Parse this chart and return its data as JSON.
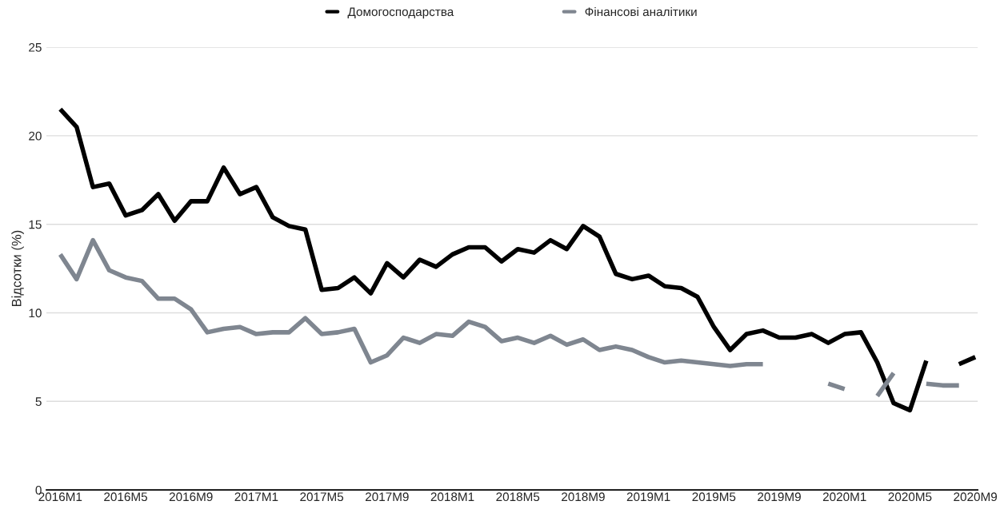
{
  "chart_data": {
    "type": "line",
    "ylabel": "Відсотки (%)",
    "categories": [
      "2016M1",
      null,
      null,
      null,
      "2016M5",
      null,
      null,
      null,
      "2016M9",
      null,
      null,
      null,
      "2017M1",
      null,
      null,
      null,
      "2017M5",
      null,
      null,
      null,
      "2017M9",
      null,
      null,
      null,
      "2018M1",
      null,
      null,
      null,
      "2018M5",
      null,
      null,
      null,
      "2018M9",
      null,
      null,
      null,
      "2019M1",
      null,
      null,
      null,
      "2019M5",
      null,
      null,
      null,
      "2019M9",
      null,
      null,
      null,
      "2020M1",
      null,
      null,
      null,
      "2020M5",
      null,
      null,
      null,
      "2020M9"
    ],
    "series": [
      {
        "name": "Домогосподарства",
        "color": "#000000",
        "values": [
          21.5,
          20.5,
          17.1,
          17.3,
          15.5,
          15.8,
          16.7,
          15.2,
          16.3,
          16.3,
          18.2,
          16.7,
          17.1,
          15.4,
          14.9,
          14.7,
          11.3,
          11.4,
          12.0,
          11.1,
          12.8,
          12.0,
          13.0,
          12.6,
          13.3,
          13.7,
          13.7,
          12.9,
          13.6,
          13.4,
          14.1,
          13.6,
          14.9,
          14.3,
          12.2,
          11.9,
          12.1,
          11.5,
          11.4,
          10.9,
          9.2,
          7.9,
          8.8,
          9.0,
          8.6,
          8.6,
          8.8,
          8.3,
          8.8,
          8.9,
          7.2,
          4.9,
          4.5,
          7.3,
          null,
          7.1,
          7.5
        ]
      },
      {
        "name": "Фінансові аналітики",
        "color": "#7f8690",
        "values": [
          13.3,
          11.9,
          14.1,
          12.4,
          12.0,
          11.8,
          10.8,
          10.8,
          10.2,
          8.9,
          9.1,
          9.2,
          8.8,
          8.9,
          8.9,
          9.7,
          8.8,
          8.9,
          9.1,
          7.2,
          7.6,
          8.6,
          8.3,
          8.8,
          8.7,
          9.5,
          9.2,
          8.4,
          8.6,
          8.3,
          8.7,
          8.2,
          8.5,
          7.9,
          8.1,
          7.9,
          7.5,
          7.2,
          7.3,
          7.2,
          7.1,
          7.0,
          7.1,
          7.1,
          null,
          null,
          null,
          6.0,
          5.7,
          null,
          5.3,
          6.6,
          null,
          6.0,
          5.9,
          5.9,
          null
        ]
      }
    ],
    "ylim": [
      0,
      25
    ],
    "yticks": [
      0,
      5,
      10,
      15,
      20,
      25
    ],
    "grid": "y",
    "legend": "top",
    "marker": "none",
    "line_style": "solid"
  }
}
